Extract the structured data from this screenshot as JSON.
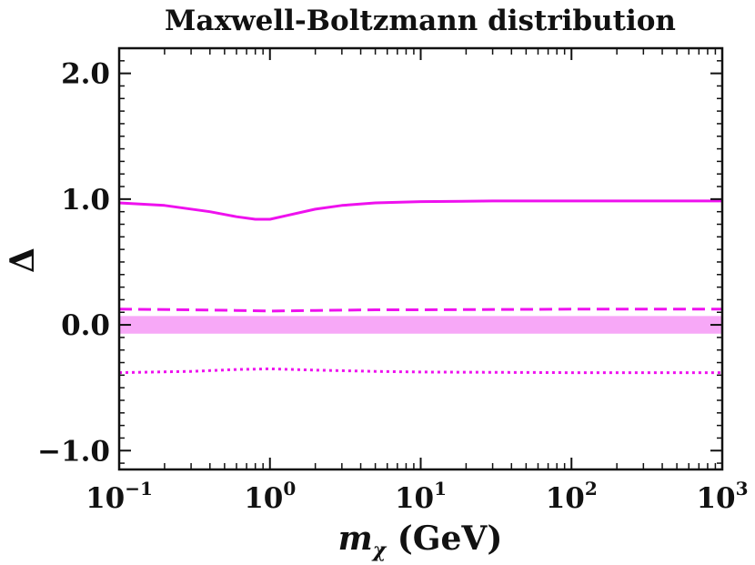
{
  "chart_data": {
    "type": "line",
    "title": "Maxwell-Boltzmann distribution",
    "xlabel": "m_χ (GeV)",
    "xlabel_parts": {
      "symbol": "m",
      "subscript": "χ",
      "unit": " (GeV)"
    },
    "ylabel": "Δ",
    "x_scale": "log",
    "xlim": [
      0.1,
      1000
    ],
    "ylim": [
      -1.15,
      2.2
    ],
    "x_ticks": [
      {
        "base": "10",
        "exp": "−1",
        "value": 0.1
      },
      {
        "base": "10",
        "exp": "0",
        "value": 1
      },
      {
        "base": "10",
        "exp": "1",
        "value": 10
      },
      {
        "base": "10",
        "exp": "2",
        "value": 100
      },
      {
        "base": "10",
        "exp": "3",
        "value": 1000
      }
    ],
    "y_ticks": [
      {
        "label": "2.0",
        "value": 2.0
      },
      {
        "label": "1.0",
        "value": 1.0
      },
      {
        "label": "0.0",
        "value": 0.0
      },
      {
        "label": "−1.0",
        "value": -1.0
      }
    ],
    "color": "#ee11ee",
    "band_color": "#f7a8f7",
    "band": {
      "x": [
        0.1,
        1000
      ],
      "lower": [
        -0.07,
        -0.07
      ],
      "upper": [
        0.07,
        0.07
      ]
    },
    "series": [
      {
        "style": "solid",
        "x": [
          0.1,
          0.2,
          0.4,
          0.6,
          0.8,
          1.0,
          1.3,
          2.0,
          3.0,
          5.0,
          10,
          30,
          100,
          300,
          1000
        ],
        "y": [
          0.97,
          0.95,
          0.9,
          0.86,
          0.84,
          0.84,
          0.87,
          0.92,
          0.95,
          0.97,
          0.98,
          0.985,
          0.985,
          0.985,
          0.985
        ]
      },
      {
        "style": "dashed",
        "x": [
          0.1,
          0.3,
          0.6,
          1.0,
          2.0,
          5.0,
          10,
          100,
          1000
        ],
        "y": [
          0.125,
          0.12,
          0.115,
          0.11,
          0.115,
          0.12,
          0.12,
          0.125,
          0.125
        ]
      },
      {
        "style": "dotted",
        "x": [
          0.1,
          0.3,
          0.6,
          1.0,
          2.0,
          5.0,
          10,
          100,
          1000
        ],
        "y": [
          -0.38,
          -0.37,
          -0.355,
          -0.35,
          -0.36,
          -0.37,
          -0.375,
          -0.38,
          -0.38
        ]
      }
    ],
    "grid": false,
    "legend": "none"
  }
}
